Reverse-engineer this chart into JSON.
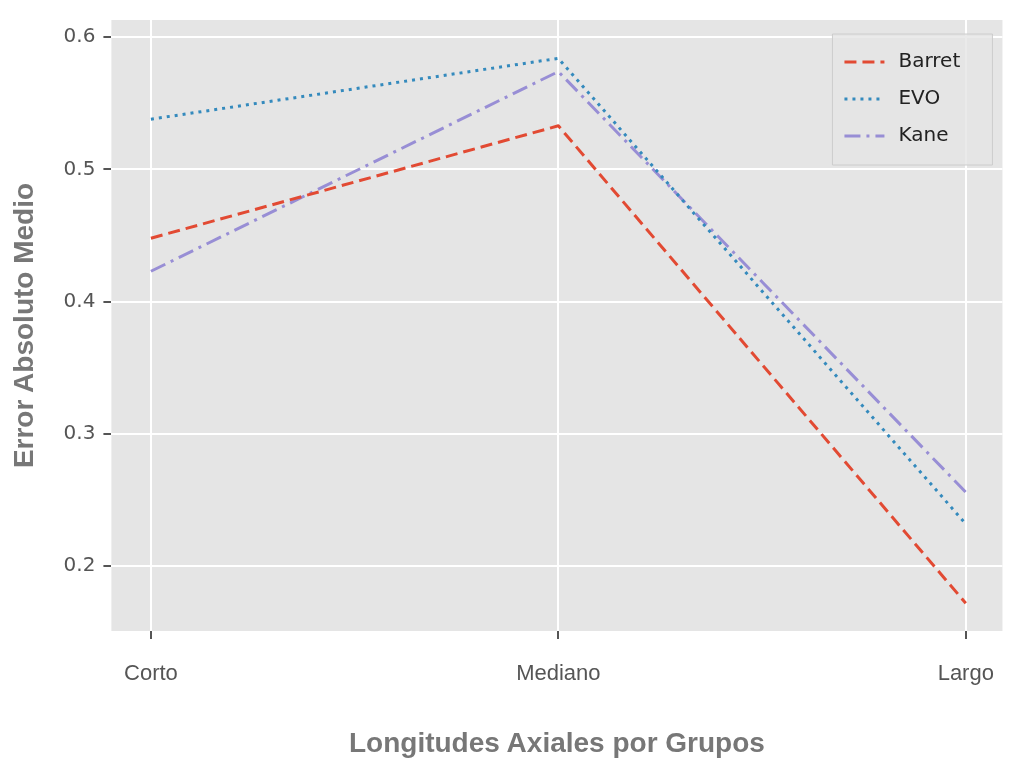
{
  "chart_data": {
    "type": "line",
    "xlabel": "Longitudes Axiales por Grupos",
    "ylabel": "Error Absoluto Medio",
    "categories": [
      "Corto",
      "Mediano",
      "Largo"
    ],
    "series": [
      {
        "name": "Barret",
        "color": "#e24a33",
        "line_style": "dashed",
        "values": [
          0.448,
          0.533,
          0.172
        ]
      },
      {
        "name": "EVO",
        "color": "#348abd",
        "line_style": "dotted",
        "values": [
          0.538,
          0.584,
          0.232
        ]
      },
      {
        "name": "Kane",
        "color": "#988ed5",
        "line_style": "dashdot",
        "values": [
          0.423,
          0.574,
          0.256
        ]
      }
    ],
    "ylim": [
      0.151,
      0.613
    ],
    "yticks": [
      0.2,
      0.3,
      0.4,
      0.5,
      0.6
    ],
    "grid": true,
    "legend": "top right",
    "marker": "none"
  }
}
